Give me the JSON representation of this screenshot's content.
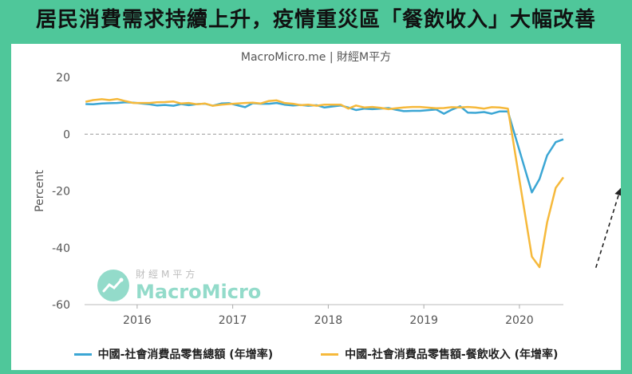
{
  "header": {
    "title": "居民消費需求持續上升，疫情重災區「餐飲收入」大幅改善"
  },
  "watermark": {
    "cn": "財經M平方",
    "en": "MacroMicro"
  },
  "chart_data": {
    "type": "line",
    "subtitle": "MacroMicro.me | 財經M平方",
    "ylabel": "Percent",
    "xlabel": "",
    "ylim": [
      -60,
      20
    ],
    "yticks": [
      20,
      0,
      -20,
      -40,
      -60
    ],
    "xlim": [
      2015.45,
      2020.46
    ],
    "xticks": [
      2016,
      2017,
      2018,
      2019,
      2020
    ],
    "zero_line": "dashed",
    "annotations": [
      {
        "type": "dashed-arrow",
        "direction": "up-right"
      }
    ],
    "series": [
      {
        "name": "中國-社會消費品零售總額 (年增率)",
        "color": "#3ba6d4",
        "points": [
          [
            2015.46,
            10.6
          ],
          [
            2015.54,
            10.5
          ],
          [
            2015.63,
            10.8
          ],
          [
            2015.71,
            10.9
          ],
          [
            2015.79,
            11.0
          ],
          [
            2015.88,
            11.2
          ],
          [
            2015.96,
            11.1
          ],
          [
            2016.13,
            10.5
          ],
          [
            2016.21,
            10.1
          ],
          [
            2016.29,
            10.3
          ],
          [
            2016.38,
            10.0
          ],
          [
            2016.46,
            10.6
          ],
          [
            2016.54,
            10.2
          ],
          [
            2016.63,
            10.6
          ],
          [
            2016.71,
            10.7
          ],
          [
            2016.79,
            10.0
          ],
          [
            2016.88,
            10.8
          ],
          [
            2016.96,
            10.9
          ],
          [
            2017.13,
            9.5
          ],
          [
            2017.21,
            10.9
          ],
          [
            2017.29,
            10.7
          ],
          [
            2017.38,
            10.7
          ],
          [
            2017.46,
            11.0
          ],
          [
            2017.54,
            10.4
          ],
          [
            2017.63,
            10.1
          ],
          [
            2017.71,
            10.3
          ],
          [
            2017.79,
            10.0
          ],
          [
            2017.88,
            10.2
          ],
          [
            2017.96,
            9.4
          ],
          [
            2018.13,
            10.1
          ],
          [
            2018.21,
            9.4
          ],
          [
            2018.29,
            8.5
          ],
          [
            2018.38,
            9.0
          ],
          [
            2018.46,
            8.8
          ],
          [
            2018.54,
            9.0
          ],
          [
            2018.63,
            9.2
          ],
          [
            2018.71,
            8.6
          ],
          [
            2018.79,
            8.1
          ],
          [
            2018.88,
            8.2
          ],
          [
            2018.96,
            8.2
          ],
          [
            2019.13,
            8.7
          ],
          [
            2019.21,
            7.2
          ],
          [
            2019.29,
            8.6
          ],
          [
            2019.38,
            9.8
          ],
          [
            2019.46,
            7.6
          ],
          [
            2019.54,
            7.5
          ],
          [
            2019.63,
            7.8
          ],
          [
            2019.71,
            7.2
          ],
          [
            2019.79,
            8.0
          ],
          [
            2019.88,
            8.0
          ],
          [
            2020.13,
            -20.5
          ],
          [
            2020.21,
            -15.8
          ],
          [
            2020.29,
            -7.5
          ],
          [
            2020.38,
            -2.8
          ],
          [
            2020.46,
            -1.8
          ]
        ]
      },
      {
        "name": "中國-社會消費品零售額-餐飲收入 (年增率)",
        "color": "#f6b93b",
        "points": [
          [
            2015.46,
            11.4
          ],
          [
            2015.54,
            12.0
          ],
          [
            2015.63,
            12.3
          ],
          [
            2015.71,
            12.0
          ],
          [
            2015.79,
            12.4
          ],
          [
            2015.88,
            11.6
          ],
          [
            2015.96,
            11.0
          ],
          [
            2016.13,
            11.0
          ],
          [
            2016.21,
            11.2
          ],
          [
            2016.29,
            11.3
          ],
          [
            2016.38,
            11.5
          ],
          [
            2016.46,
            10.8
          ],
          [
            2016.54,
            11.0
          ],
          [
            2016.63,
            10.5
          ],
          [
            2016.71,
            10.8
          ],
          [
            2016.79,
            10.0
          ],
          [
            2016.88,
            10.4
          ],
          [
            2016.96,
            10.6
          ],
          [
            2017.13,
            11.0
          ],
          [
            2017.21,
            11.1
          ],
          [
            2017.29,
            10.8
          ],
          [
            2017.38,
            11.7
          ],
          [
            2017.46,
            11.9
          ],
          [
            2017.54,
            11.0
          ],
          [
            2017.63,
            10.7
          ],
          [
            2017.71,
            10.2
          ],
          [
            2017.79,
            10.4
          ],
          [
            2017.88,
            10.0
          ],
          [
            2017.96,
            10.4
          ],
          [
            2018.13,
            10.4
          ],
          [
            2018.21,
            9.0
          ],
          [
            2018.29,
            10.1
          ],
          [
            2018.38,
            9.4
          ],
          [
            2018.46,
            9.6
          ],
          [
            2018.54,
            9.3
          ],
          [
            2018.63,
            8.8
          ],
          [
            2018.71,
            9.1
          ],
          [
            2018.79,
            9.4
          ],
          [
            2018.88,
            9.6
          ],
          [
            2018.96,
            9.6
          ],
          [
            2019.13,
            9.1
          ],
          [
            2019.21,
            9.2
          ],
          [
            2019.29,
            9.5
          ],
          [
            2019.38,
            9.4
          ],
          [
            2019.46,
            9.6
          ],
          [
            2019.54,
            9.4
          ],
          [
            2019.63,
            9.0
          ],
          [
            2019.71,
            9.5
          ],
          [
            2019.79,
            9.4
          ],
          [
            2019.88,
            9.0
          ],
          [
            2020.13,
            -43.1
          ],
          [
            2020.21,
            -46.8
          ],
          [
            2020.29,
            -31.1
          ],
          [
            2020.38,
            -18.9
          ],
          [
            2020.46,
            -15.2
          ]
        ]
      }
    ]
  }
}
